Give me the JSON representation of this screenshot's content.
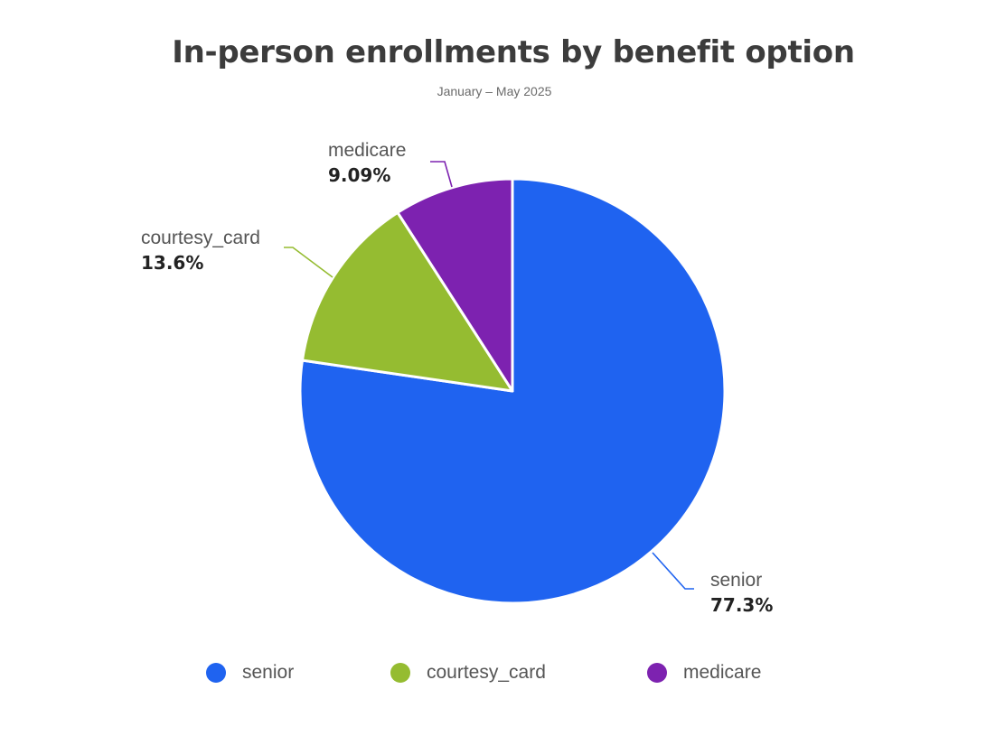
{
  "chart_data": {
    "type": "pie",
    "title": "In-person enrollments by benefit option",
    "subtitle": "January – May 2025",
    "slices": [
      {
        "label": "senior",
        "value": 77.3,
        "display": "77.3%",
        "color": "#1f63f0"
      },
      {
        "label": "courtesy_card",
        "value": 13.6,
        "display": "13.6%",
        "color": "#95bc31"
      },
      {
        "label": "medicare",
        "value": 9.09,
        "display": "9.09%",
        "color": "#7d22b0"
      }
    ],
    "start_angle_deg": 0,
    "direction": "clockwise",
    "legend_position": "bottom"
  }
}
